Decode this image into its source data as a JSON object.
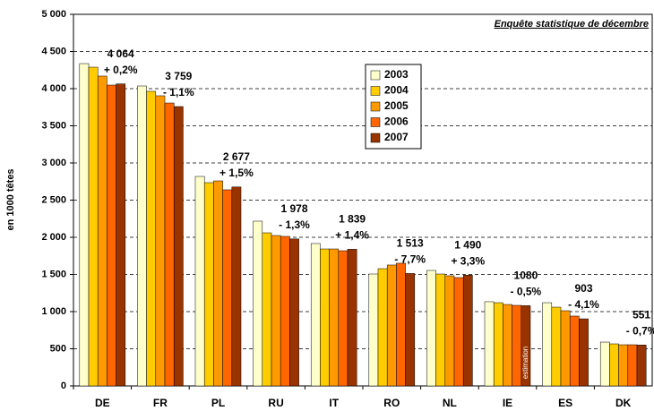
{
  "chart_data": {
    "type": "bar",
    "subtitle": "Enquête statistique de décembre",
    "y_label": "en 1000 têtes",
    "categories": [
      "DE",
      "FR",
      "PL",
      "RU",
      "IT",
      "RO",
      "NL",
      "IE",
      "ES",
      "DK"
    ],
    "series": [
      {
        "name": "2003",
        "color": "#ffffcc",
        "values": [
          4337,
          4036,
          2819,
          2217,
          1916,
          1506,
          1554,
          1133,
          1120,
          590
        ]
      },
      {
        "name": "2004",
        "color": "#ffcc00",
        "values": [
          4289,
          3964,
          2735,
          2060,
          1843,
          1578,
          1506,
          1120,
          1060,
          566
        ]
      },
      {
        "name": "2005",
        "color": "#ff9900",
        "values": [
          4169,
          3904,
          2759,
          2024,
          1843,
          1627,
          1482,
          1096,
          1012,
          554
        ]
      },
      {
        "name": "2006",
        "color": "#ff6600",
        "values": [
          4048,
          3807,
          2639,
          2012,
          1819,
          1651,
          1458,
          1084,
          940,
          554
        ]
      },
      {
        "name": "2007",
        "color": "#993300",
        "values": [
          4064,
          3759,
          2677,
          1978,
          1839,
          1513,
          1490,
          1080,
          903,
          551
        ],
        "value_labels": [
          "4 064",
          "3 759",
          "2 677",
          "1 978",
          "1 839",
          "1 513",
          "1 490",
          "1080",
          "903",
          "551"
        ]
      }
    ],
    "changes": [
      "+ 0,2%",
      "- 1,1%",
      "+ 1,5%",
      "- 1,3%",
      "+ 1,4%",
      "- 7,7%",
      "+ 3,3%",
      "- 0,5%",
      "- 4,1%",
      "- 0,7%"
    ],
    "annotation": "estimation",
    "ylim": [
      0,
      5000
    ],
    "yticks": [
      0,
      500,
      {
        "value": 1000,
        "label": "1 000"
      },
      {
        "value": 1500,
        "label": "1 500"
      },
      {
        "value": 2000,
        "label": "2 000"
      },
      {
        "value": 2500,
        "label": "2 500"
      },
      {
        "value": 3000,
        "label": "3 000"
      },
      {
        "value": 3500,
        "label": "3 500"
      },
      {
        "value": 4000,
        "label": "4 000"
      },
      {
        "value": 4500,
        "label": "4 500"
      },
      {
        "value": 5000,
        "label": "5 000"
      }
    ],
    "grid": true,
    "legend": "upper center"
  }
}
